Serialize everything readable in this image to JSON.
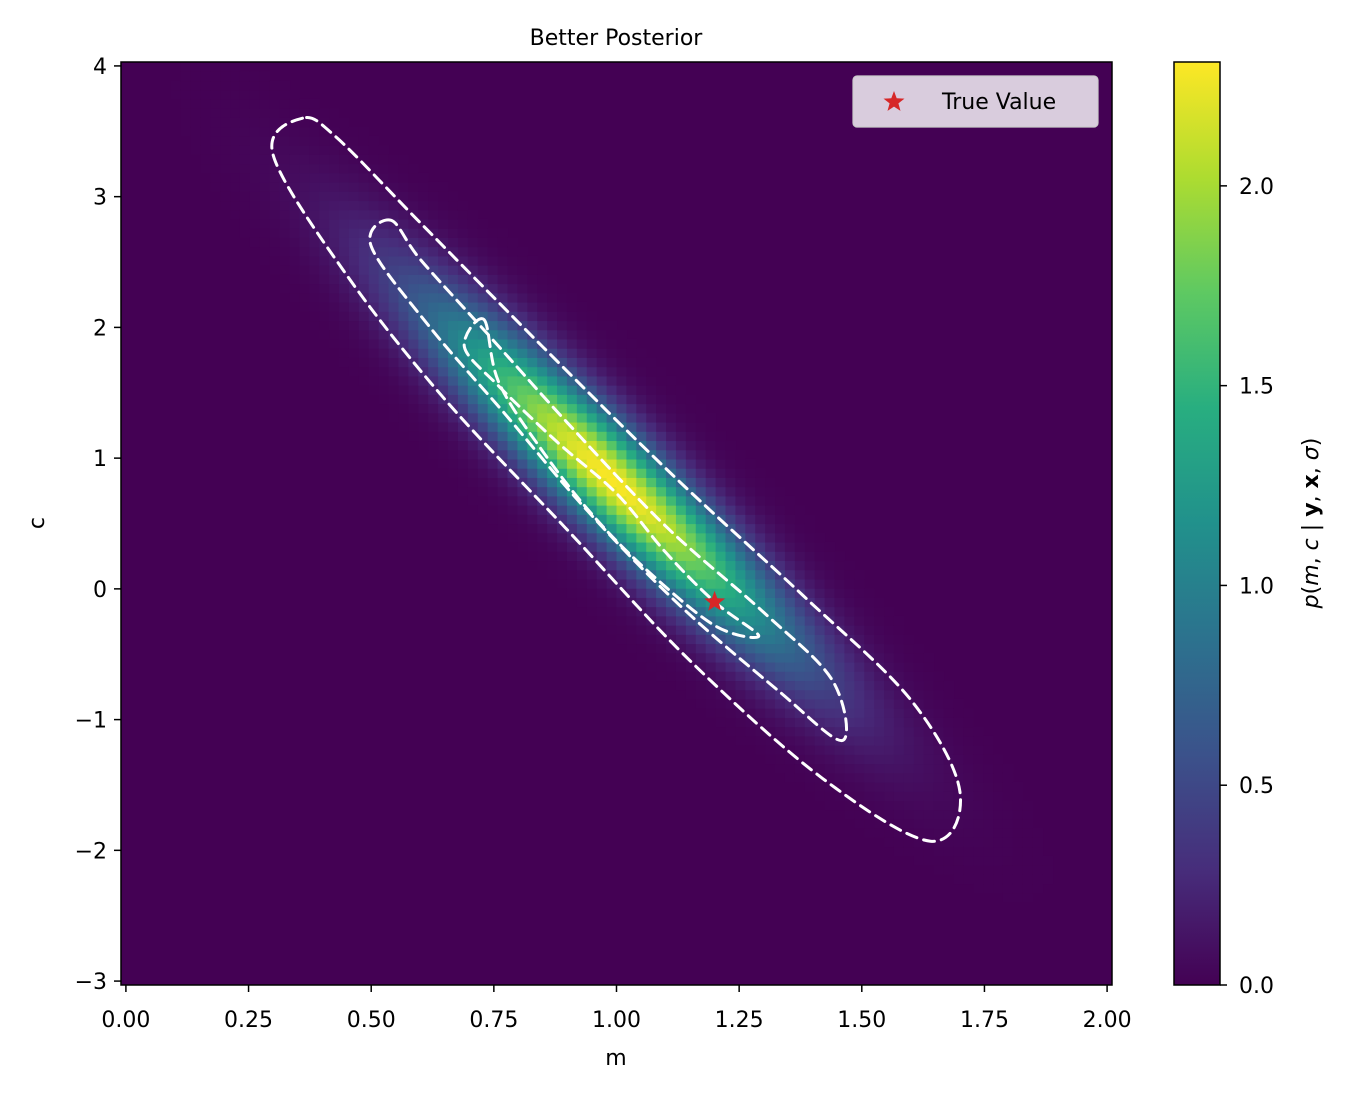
{
  "chart_data": {
    "type": "heatmap",
    "title": "Better Posterior",
    "xlabel": "m",
    "ylabel": "c",
    "xlim": [
      -0.01,
      2.01
    ],
    "ylim": [
      -3.03,
      4.03
    ],
    "xticks": [
      0.0,
      0.25,
      0.5,
      0.75,
      1.0,
      1.25,
      1.5,
      1.75,
      2.0
    ],
    "xtick_labels": [
      "0.00",
      "0.25",
      "0.50",
      "0.75",
      "1.00",
      "1.25",
      "1.50",
      "1.75",
      "2.00"
    ],
    "yticks": [
      -3,
      -2,
      -1,
      0,
      1,
      2,
      3,
      4
    ],
    "ytick_labels": [
      "−3",
      "−2",
      "−1",
      "0",
      "1",
      "2",
      "3",
      "4"
    ],
    "colormap": "viridis",
    "colorbar": {
      "label": "p(m, c | y, x, σ)",
      "range": [
        0.0,
        2.31
      ],
      "ticks": [
        0.0,
        0.5,
        1.0,
        1.5,
        2.0
      ],
      "tick_labels": [
        "0.0",
        "0.5",
        "1.0",
        "1.5",
        "2.0"
      ]
    },
    "distribution": {
      "family": "bivariate gaussian",
      "mean_m": 0.99,
      "mean_c": 0.84,
      "peak_density": 2.3
    },
    "contours": [
      {
        "level": "1 sigma",
        "style": "dashed",
        "color": "#ffffff",
        "points": [
          [
            0.73,
            2.06
          ],
          [
            0.69,
            1.85
          ],
          [
            0.76,
            1.55
          ],
          [
            0.88,
            1.12
          ],
          [
            1.0,
            0.73
          ],
          [
            1.1,
            0.28
          ],
          [
            1.2,
            -0.1
          ],
          [
            1.29,
            -0.36
          ],
          [
            1.2,
            -0.28
          ],
          [
            1.06,
            0.15
          ],
          [
            0.95,
            0.57
          ],
          [
            0.85,
            1.05
          ],
          [
            0.76,
            1.58
          ],
          [
            0.73,
            2.06
          ]
        ]
      },
      {
        "level": "2 sigma",
        "style": "dashed",
        "color": "#ffffff",
        "points": [
          [
            0.54,
            2.82
          ],
          [
            0.5,
            2.62
          ],
          [
            0.62,
            2.0
          ],
          [
            0.77,
            1.35
          ],
          [
            0.94,
            0.6
          ],
          [
            1.13,
            -0.13
          ],
          [
            1.33,
            -0.78
          ],
          [
            1.46,
            -1.16
          ],
          [
            1.44,
            -0.7
          ],
          [
            1.3,
            -0.18
          ],
          [
            1.1,
            0.48
          ],
          [
            0.9,
            1.27
          ],
          [
            0.73,
            1.98
          ],
          [
            0.6,
            2.52
          ],
          [
            0.54,
            2.82
          ]
        ]
      },
      {
        "level": "3 sigma",
        "style": "dashed",
        "color": "#ffffff",
        "points": [
          [
            0.36,
            3.6
          ],
          [
            0.3,
            3.32
          ],
          [
            0.45,
            2.4
          ],
          [
            0.65,
            1.45
          ],
          [
            0.9,
            0.45
          ],
          [
            1.15,
            -0.55
          ],
          [
            1.42,
            -1.45
          ],
          [
            1.64,
            -1.93
          ],
          [
            1.7,
            -1.55
          ],
          [
            1.6,
            -0.85
          ],
          [
            1.38,
            -0.05
          ],
          [
            1.12,
            0.85
          ],
          [
            0.85,
            1.85
          ],
          [
            0.6,
            2.8
          ],
          [
            0.43,
            3.45
          ],
          [
            0.36,
            3.6
          ]
        ]
      }
    ],
    "markers": [
      {
        "name": "True Value",
        "m": 1.2,
        "c": -0.1,
        "marker": "star",
        "color": "#d62728"
      }
    ],
    "legend": {
      "entries": [
        "True Value"
      ],
      "placement": "top-right"
    }
  }
}
